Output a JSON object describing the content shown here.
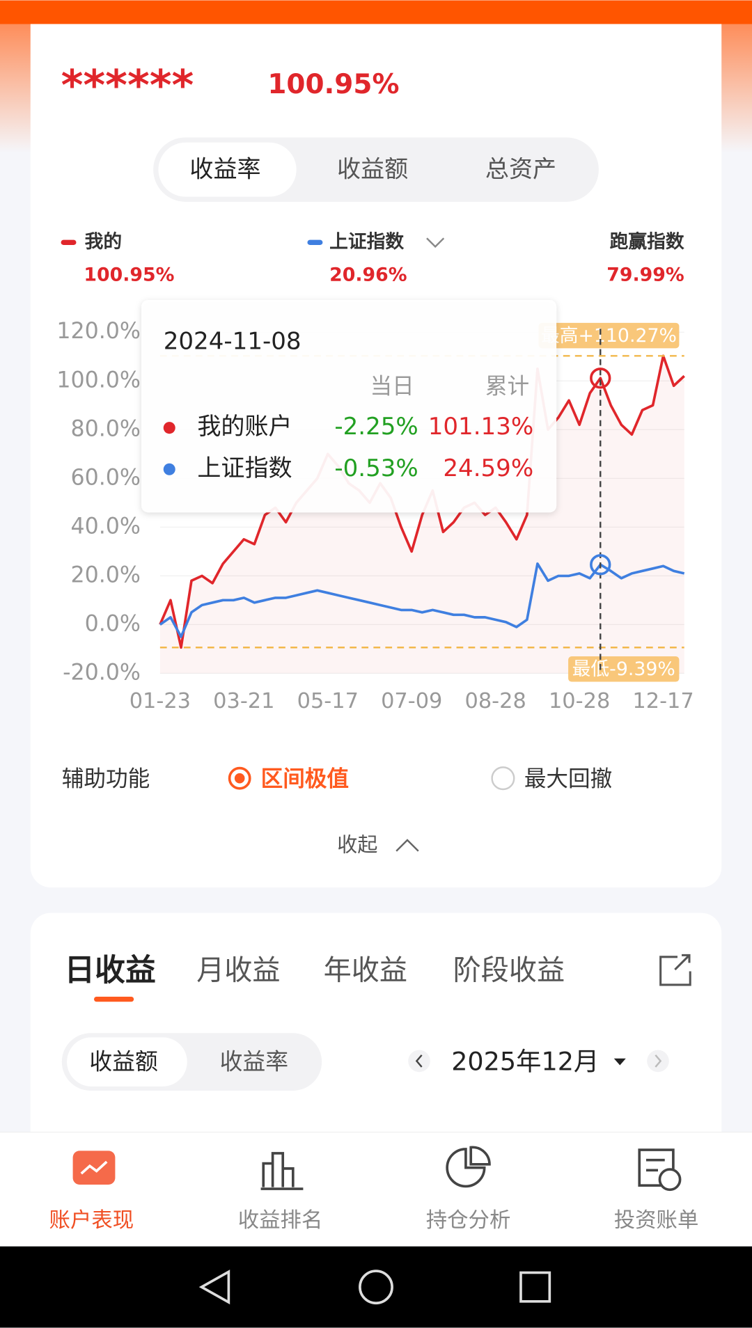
{
  "header": {
    "masked": "******",
    "return": "100.95%"
  },
  "segments": [
    "收益率",
    "收益额",
    "总资产"
  ],
  "chart_data": {
    "type": "line",
    "categories": [
      "01-23",
      null,
      null,
      null,
      null,
      null,
      null,
      null,
      "03-21",
      null,
      null,
      null,
      null,
      null,
      null,
      null,
      "05-17",
      null,
      null,
      null,
      null,
      null,
      null,
      null,
      "07-09",
      null,
      null,
      null,
      null,
      null,
      null,
      null,
      "08-28",
      null,
      null,
      null,
      null,
      null,
      null,
      null,
      "10-28",
      null,
      null,
      null,
      null,
      null,
      null,
      null,
      "12-17",
      null,
      null
    ],
    "series": [
      {
        "name": "我的",
        "color": "#e0262b",
        "values": [
          0,
          10,
          -9.39,
          18,
          20,
          17,
          25,
          30,
          35,
          33,
          45,
          48,
          42,
          50,
          55,
          60,
          70,
          65,
          58,
          55,
          50,
          58,
          52,
          40,
          30,
          45,
          55,
          38,
          42,
          48,
          50,
          45,
          48,
          42,
          35,
          45,
          105,
          80,
          85,
          92,
          82,
          95,
          101.13,
          90,
          82,
          78,
          88,
          90,
          110.27,
          98,
          102
        ]
      },
      {
        "name": "上证指数",
        "color": "#3f7fe0",
        "values": [
          0,
          3,
          -5,
          5,
          8,
          9,
          10,
          10,
          11,
          9,
          10,
          11,
          11,
          12,
          13,
          14,
          13,
          12,
          11,
          10,
          9,
          8,
          7,
          6,
          6,
          5,
          6,
          5,
          4,
          4,
          3,
          3,
          2,
          1,
          -1,
          2,
          25,
          18,
          20,
          20,
          21,
          19,
          24.59,
          22,
          19,
          21,
          22,
          23,
          24,
          22,
          21
        ]
      }
    ],
    "ylim": [
      -20,
      120
    ],
    "yticks": [
      {
        "value": -20,
        "label": "-20.0%"
      },
      {
        "value": 0,
        "label": "0.0%"
      },
      {
        "value": 20,
        "label": "20.0%"
      },
      {
        "value": 40,
        "label": "40.0%"
      },
      {
        "value": 60,
        "label": "60.0%"
      },
      {
        "value": 80,
        "label": "80.0%"
      },
      {
        "value": 100,
        "label": "100.0%"
      },
      {
        "value": 120,
        "label": "120.0%"
      }
    ],
    "grid": true,
    "summary": [
      "100.95%",
      "20.96%",
      "79.99%"
    ],
    "outperform": "跑赢指数",
    "extremes": {
      "max": {
        "value": 110.27,
        "label": "最高+110.27%"
      },
      "min": {
        "value": -9.39,
        "label": "最低-9.39%"
      }
    },
    "tooltip": {
      "date": "2024-11-08",
      "columns": [
        "当日",
        "累计"
      ],
      "rows": [
        {
          "name": "我的账户",
          "day": "-2.25%",
          "total": "101.13%"
        },
        {
          "name": "上证指数",
          "day": "-0.53%",
          "total": "24.59%"
        }
      ]
    }
  },
  "aux": {
    "label": "辅助功能",
    "options": [
      "区间极值",
      "最大回撤"
    ]
  },
  "collapse": "收起",
  "income": {
    "tabs": [
      "日收益",
      "月收益",
      "年收益",
      "阶段收益"
    ],
    "modes": [
      "收益额",
      "收益率"
    ],
    "month": "2025年12月"
  },
  "nav": [
    "账户表现",
    "收益排名",
    "持仓分析",
    "投资账单"
  ]
}
